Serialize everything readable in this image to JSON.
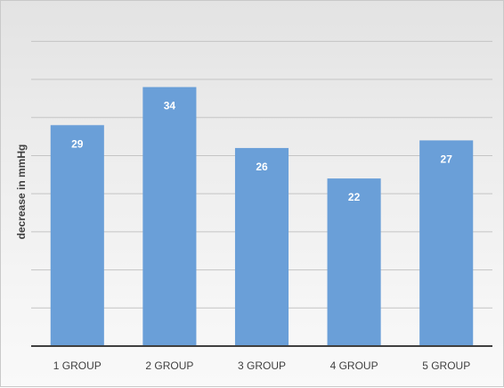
{
  "chart_data": {
    "type": "bar",
    "title": "",
    "xlabel": "",
    "ylabel": "decrease in mmHg",
    "categories": [
      "1 GROUP",
      "2 GROUP",
      "3 GROUP",
      "4 GROUP",
      "5 GROUP"
    ],
    "values": [
      29,
      34,
      26,
      22,
      27
    ],
    "ylim": [
      0,
      42.5
    ],
    "y_tick_step": 5,
    "y_tick_labels_shown": false,
    "grid": true,
    "data_labels": true,
    "legend": "none",
    "bar_color": "#6a9fd8",
    "grid_color": "#c4c4c4",
    "axis_color": "#404040"
  }
}
